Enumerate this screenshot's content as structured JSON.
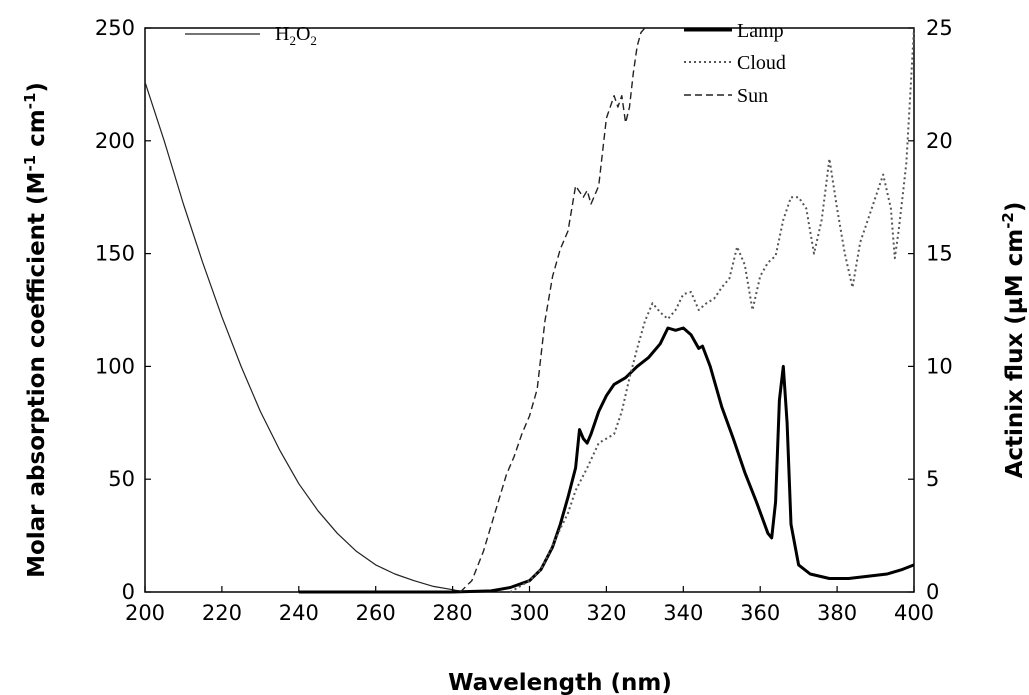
{
  "chart_data": {
    "type": "line",
    "x": {
      "label": "Wavelength (nm)",
      "range": [
        200,
        400
      ],
      "ticks": [
        200,
        220,
        240,
        260,
        280,
        300,
        320,
        340,
        360,
        380,
        400
      ]
    },
    "y_left": {
      "label": "Molar absorption coefficient (M",
      "label_sup1": "-1",
      "label_mid": " cm",
      "label_sup2": "-1",
      "label_end": ")",
      "range": [
        0,
        250
      ],
      "ticks": [
        0,
        50,
        100,
        150,
        200,
        250
      ]
    },
    "y_right": {
      "label": "Actinix flux (µM cm",
      "label_sup": "-2",
      "label_end": ")",
      "range": [
        0,
        25
      ],
      "ticks": [
        0,
        5,
        10,
        15,
        20,
        25
      ]
    },
    "legend_left": {
      "h2o2_main": "H",
      "h2o2_sub1": "2",
      "h2o2_mid": "O",
      "h2o2_sub2": "2"
    },
    "legend_right": [
      "Lamp",
      "Cloud",
      "Sun"
    ],
    "series": [
      {
        "name": "H2O2",
        "axis": "left",
        "style": "solid-thin",
        "points": [
          [
            200,
            226
          ],
          [
            205,
            200
          ],
          [
            210,
            172
          ],
          [
            215,
            146
          ],
          [
            220,
            122
          ],
          [
            225,
            100
          ],
          [
            230,
            80
          ],
          [
            235,
            63
          ],
          [
            240,
            48
          ],
          [
            245,
            36
          ],
          [
            250,
            26
          ],
          [
            255,
            18
          ],
          [
            260,
            12
          ],
          [
            265,
            8
          ],
          [
            270,
            5
          ],
          [
            275,
            2.5
          ],
          [
            280,
            1
          ],
          [
            283,
            0
          ]
        ]
      },
      {
        "name": "Lamp",
        "axis": "right",
        "style": "solid-thick",
        "points": [
          [
            240,
            0
          ],
          [
            280,
            0
          ],
          [
            290,
            0.05
          ],
          [
            295,
            0.2
          ],
          [
            300,
            0.5
          ],
          [
            303,
            1
          ],
          [
            306,
            2
          ],
          [
            308,
            3
          ],
          [
            310,
            4.2
          ],
          [
            312,
            5.5
          ],
          [
            313,
            7.2
          ],
          [
            314,
            6.8
          ],
          [
            315,
            6.6
          ],
          [
            316,
            7
          ],
          [
            318,
            8
          ],
          [
            320,
            8.7
          ],
          [
            322,
            9.2
          ],
          [
            325,
            9.5
          ],
          [
            328,
            10
          ],
          [
            331,
            10.4
          ],
          [
            334,
            11
          ],
          [
            336,
            11.7
          ],
          [
            338,
            11.6
          ],
          [
            340,
            11.7
          ],
          [
            342,
            11.4
          ],
          [
            344,
            10.8
          ],
          [
            345,
            10.9
          ],
          [
            347,
            10
          ],
          [
            350,
            8.2
          ],
          [
            353,
            6.8
          ],
          [
            356,
            5.3
          ],
          [
            359,
            4
          ],
          [
            362,
            2.6
          ],
          [
            363,
            2.4
          ],
          [
            364,
            4
          ],
          [
            365,
            8.5
          ],
          [
            366,
            10
          ],
          [
            367,
            7.5
          ],
          [
            368,
            3
          ],
          [
            370,
            1.2
          ],
          [
            373,
            0.8
          ],
          [
            378,
            0.6
          ],
          [
            383,
            0.6
          ],
          [
            388,
            0.7
          ],
          [
            393,
            0.8
          ],
          [
            397,
            1
          ],
          [
            400,
            1.2
          ]
        ]
      },
      {
        "name": "Cloud",
        "axis": "right",
        "style": "dotted",
        "points": [
          [
            295,
            0
          ],
          [
            300,
            0.5
          ],
          [
            303,
            1
          ],
          [
            305,
            1.7
          ],
          [
            308,
            2.8
          ],
          [
            310,
            3.5
          ],
          [
            312,
            4.5
          ],
          [
            315,
            5.5
          ],
          [
            318,
            6.6
          ],
          [
            320,
            6.8
          ],
          [
            322,
            7
          ],
          [
            324,
            8
          ],
          [
            326,
            9.5
          ],
          [
            328,
            10.8
          ],
          [
            330,
            12
          ],
          [
            332,
            12.8
          ],
          [
            334,
            12.4
          ],
          [
            336,
            12.1
          ],
          [
            338,
            12.5
          ],
          [
            340,
            13.2
          ],
          [
            342,
            13.3
          ],
          [
            344,
            12.5
          ],
          [
            346,
            12.8
          ],
          [
            348,
            13
          ],
          [
            350,
            13.5
          ],
          [
            352,
            13.9
          ],
          [
            354,
            15.3
          ],
          [
            356,
            14.5
          ],
          [
            358,
            12.5
          ],
          [
            360,
            14
          ],
          [
            362,
            14.6
          ],
          [
            364,
            14.9
          ],
          [
            366,
            16.5
          ],
          [
            368,
            17.5
          ],
          [
            370,
            17.5
          ],
          [
            372,
            17
          ],
          [
            374,
            15
          ],
          [
            376,
            16.5
          ],
          [
            378,
            19.2
          ],
          [
            380,
            17
          ],
          [
            382,
            15
          ],
          [
            384,
            13.5
          ],
          [
            386,
            15.5
          ],
          [
            388,
            16.5
          ],
          [
            390,
            17.5
          ],
          [
            392,
            18.5
          ],
          [
            394,
            17
          ],
          [
            395,
            14.8
          ],
          [
            396,
            16
          ],
          [
            397,
            17.5
          ],
          [
            398,
            19
          ],
          [
            399,
            22
          ],
          [
            400,
            25
          ]
        ]
      },
      {
        "name": "Sun",
        "axis": "right",
        "style": "dashed",
        "points": [
          [
            282,
            0
          ],
          [
            285,
            0.5
          ],
          [
            288,
            1.8
          ],
          [
            291,
            3.5
          ],
          [
            294,
            5.2
          ],
          [
            296,
            6
          ],
          [
            298,
            7
          ],
          [
            300,
            7.8
          ],
          [
            302,
            9
          ],
          [
            304,
            12
          ],
          [
            306,
            14
          ],
          [
            308,
            15.2
          ],
          [
            310,
            16
          ],
          [
            312,
            18
          ],
          [
            314,
            17.5
          ],
          [
            315,
            17.8
          ],
          [
            316,
            17.2
          ],
          [
            318,
            18
          ],
          [
            320,
            21
          ],
          [
            322,
            22
          ],
          [
            323,
            21.5
          ],
          [
            324,
            22
          ],
          [
            325,
            20.8
          ],
          [
            326,
            21.5
          ],
          [
            327,
            23
          ],
          [
            328,
            24.2
          ],
          [
            329,
            24.8
          ],
          [
            330,
            25
          ]
        ]
      }
    ]
  }
}
